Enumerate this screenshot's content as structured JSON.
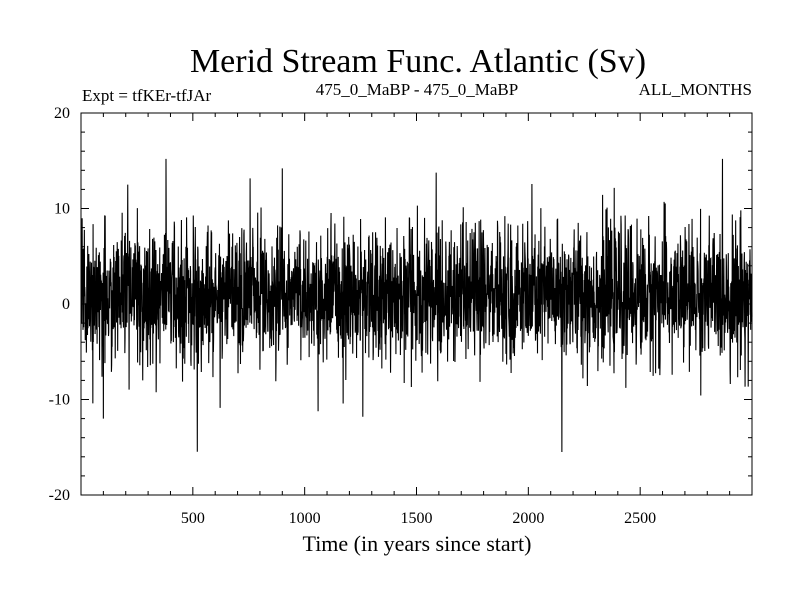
{
  "chart_data": {
    "type": "line",
    "title": "Merid Stream Func. Atlantic (Sv)",
    "subtitle_left": "Expt = tfKEr-tfJAr",
    "subtitle_center": "475_0_MaBP - 475_0_MaBP",
    "subtitle_right": "ALL_MONTHS",
    "xlabel": "Time (in years since start)",
    "ylabel": "",
    "xlim": [
      0,
      3000
    ],
    "ylim": [
      -20,
      20
    ],
    "x_ticks": [
      500,
      1000,
      1500,
      2000,
      2500
    ],
    "y_ticks": [
      -20,
      -10,
      0,
      10,
      20
    ],
    "grid": false,
    "series_color": "#000000",
    "series": [
      {
        "x_start": 1,
        "x_end": 3000,
        "x_step": 1,
        "mean": 1.0,
        "std": 3.5,
        "min": -15.5,
        "max": 15.2,
        "notable_points": [
          {
            "x": 100,
            "y": -12.0
          },
          {
            "x": 380,
            "y": 15.2
          },
          {
            "x": 900,
            "y": 14.2
          },
          {
            "x": 1260,
            "y": -11.8
          },
          {
            "x": 2150,
            "y": -15.5
          },
          {
            "x": 2950,
            "y": 9.8
          }
        ]
      }
    ]
  }
}
